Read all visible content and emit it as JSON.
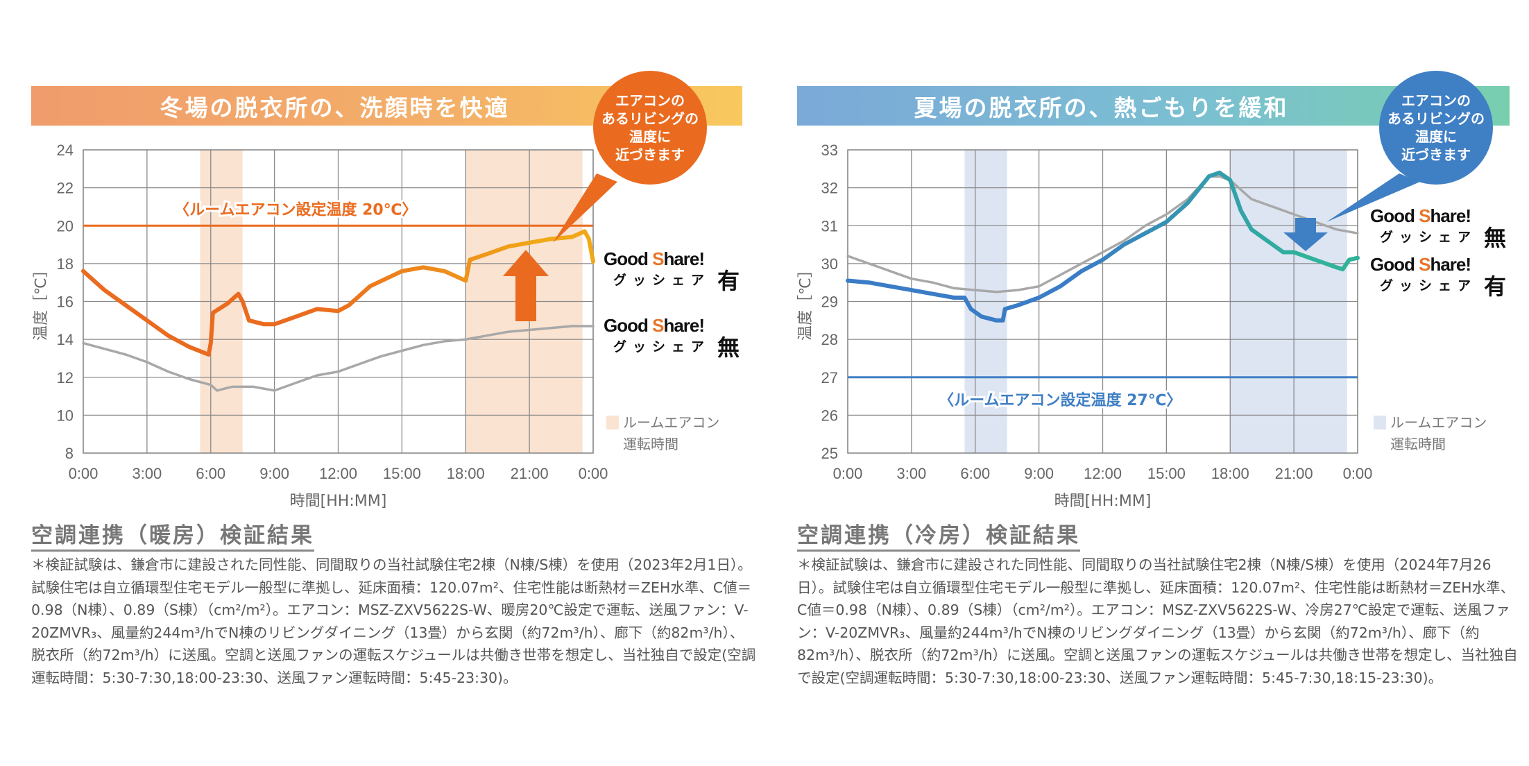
{
  "left": {
    "banner": "冬場の脱衣所の、洗顔時を快適",
    "bubble": [
      "エアコンの",
      "あるリビングの",
      "温度に",
      "近づきます"
    ],
    "legend_with": {
      "logo_a": "Good ",
      "logo_s": "S",
      "logo_b": "hare!",
      "kana": "グッシェア",
      "mark": "有"
    },
    "legend_without": {
      "logo_a": "Good ",
      "logo_s": "S",
      "logo_b": "hare!",
      "kana": "グッシェア",
      "mark": "無"
    },
    "ac_legend": [
      "ルームエアコン",
      "運転時間"
    ],
    "section_title": "空調連携（暖房）検証結果",
    "body": "＊検証試験は、鎌倉市に建設された同性能、同間取りの当社試験住宅2棟（N棟/S棟）を使用（2023年2月1日）。試験住宅は自立循環型住宅モデル一般型に準拠し、延床面積：120.07m²、住宅性能は断熱材＝ZEH水準、C値＝0.98（N棟）、0.89（S棟）（cm²/m²）。エアコン：MSZ-ZXV5622S-W、暖房20℃設定で運転、送風ファン：V-20ZMVR₃、風量約244m³/hでN棟のリビングダイニング（13畳）から玄関（約72m³/h）、廊下（約82m³/h）、脱衣所（約72m³/h）に送風。空調と送風ファンの運転スケジュールは共働き世帯を想定し、当社独自で設定(空調運転時間：5:30-7:30,18:00-23:30、送風ファン運転時間：5:45-23:30)。"
  },
  "right": {
    "banner": "夏場の脱衣所の、熱ごもりを緩和",
    "bubble": [
      "エアコンの",
      "あるリビングの",
      "温度に",
      "近づきます"
    ],
    "legend_without": {
      "logo_a": "Good ",
      "logo_s": "S",
      "logo_b": "hare!",
      "kana": "グッシェア",
      "mark": "無"
    },
    "legend_with": {
      "logo_a": "Good ",
      "logo_s": "S",
      "logo_b": "hare!",
      "kana": "グッシェア",
      "mark": "有"
    },
    "ac_legend": [
      "ルームエアコン",
      "運転時間"
    ],
    "section_title": "空調連携（冷房）検証結果",
    "body": "＊検証試験は、鎌倉市に建設された同性能、同間取りの当社試験住宅2棟（N棟/S棟）を使用（2024年7月26日）。試験住宅は自立循環型住宅モデル一般型に準拠し、延床面積：120.07m²、住宅性能は断熱材＝ZEH水準、C値＝0.98（N棟）、0.89（S棟）（cm²/m²）。エアコン：MSZ-ZXV5622S-W、冷房27℃設定で運転、送風ファン：V-20ZMVR₃、風量約244m³/hでN棟のリビングダイニング（13畳）から玄関（約72m³/h）、廊下（約82m³/h）、脱衣所（約72m³/h）に送風。空調と送風ファンの運転スケジュールは共働き世帯を想定し、当社独自で設定(空調運転時間：5:30-7:30,18:00-23:30、送風ファン運転時間：5:45-7:30,18:15-23:30)。"
  },
  "chart_data": [
    {
      "type": "line",
      "title": "冬場の脱衣所の、洗顔時を快適",
      "xlabel": "時間[HH:MM]",
      "ylabel": "温度［℃］",
      "xlim": [
        0,
        24
      ],
      "ylim": [
        8,
        24
      ],
      "xticks": [
        "0:00",
        "3:00",
        "6:00",
        "9:00",
        "12:00",
        "15:00",
        "18:00",
        "21:00",
        "0:00"
      ],
      "yticks": [
        8,
        10,
        12,
        14,
        16,
        18,
        20,
        22,
        24
      ],
      "grid": true,
      "setpoint": {
        "value": 20,
        "label": "〈ルームエアコン設定温度 20℃〉",
        "color": "#ea6b1f"
      },
      "ac_periods": [
        [
          5.5,
          7.5
        ],
        [
          18,
          23.5
        ]
      ],
      "ac_color": "#fbe3d1",
      "series": [
        {
          "name": "グッシェア有",
          "colors": [
            "#ea6b1f",
            "#f0a818"
          ],
          "x": [
            0,
            1,
            2,
            3,
            4,
            5,
            5.9,
            6.0,
            6.1,
            6.8,
            7.1,
            7.3,
            7.5,
            7.8,
            8.5,
            9,
            10,
            11,
            12,
            12.5,
            13.5,
            15,
            16,
            17,
            18,
            18.2,
            19,
            20,
            21,
            22,
            23,
            23.6,
            23.8,
            24
          ],
          "y": [
            17.6,
            16.6,
            15.8,
            15.0,
            14.2,
            13.6,
            13.2,
            13.8,
            15.4,
            15.9,
            16.2,
            16.4,
            16.0,
            15.0,
            14.8,
            14.8,
            15.2,
            15.6,
            15.5,
            15.8,
            16.8,
            17.6,
            17.8,
            17.6,
            17.1,
            18.2,
            18.5,
            18.9,
            19.1,
            19.3,
            19.4,
            19.7,
            19.3,
            18.1
          ]
        },
        {
          "name": "グッシェア無",
          "colors": [
            "#a8a8a8",
            "#a8a8a8"
          ],
          "x": [
            0,
            2,
            3,
            4,
            5,
            6,
            6.3,
            7,
            8,
            9,
            10,
            11,
            12,
            13,
            14,
            15,
            16,
            17,
            18,
            19,
            20,
            21,
            22,
            23,
            24
          ],
          "y": [
            13.8,
            13.2,
            12.8,
            12.3,
            11.9,
            11.6,
            11.3,
            11.5,
            11.5,
            11.3,
            11.7,
            12.1,
            12.3,
            12.7,
            13.1,
            13.4,
            13.7,
            13.9,
            14.0,
            14.2,
            14.4,
            14.5,
            14.6,
            14.7,
            14.7
          ]
        }
      ],
      "arrow": "up"
    },
    {
      "type": "line",
      "title": "夏場の脱衣所の、熱ごもりを緩和",
      "xlabel": "時間[HH:MM]",
      "ylabel": "温度［℃］",
      "xlim": [
        0,
        24
      ],
      "ylim": [
        25,
        33
      ],
      "xticks": [
        "0:00",
        "3:00",
        "6:00",
        "9:00",
        "12:00",
        "15:00",
        "18:00",
        "21:00",
        "0:00"
      ],
      "yticks": [
        25,
        26,
        27,
        28,
        29,
        30,
        31,
        32,
        33
      ],
      "grid": true,
      "setpoint": {
        "value": 27,
        "label": "〈ルームエアコン設定温度 27℃〉",
        "color": "#3f7fc4"
      },
      "ac_periods": [
        [
          5.5,
          7.5
        ],
        [
          18,
          23.5
        ]
      ],
      "ac_color": "#dde5f3",
      "series": [
        {
          "name": "グッシェア無",
          "colors": [
            "#a8a8a8",
            "#a8a8a8"
          ],
          "x": [
            0,
            2,
            3,
            4,
            5,
            6,
            7,
            8,
            9,
            10,
            11,
            12,
            13,
            14,
            15,
            16,
            17,
            17.5,
            18,
            19,
            20,
            21,
            22,
            23,
            24
          ],
          "y": [
            30.2,
            29.8,
            29.6,
            29.5,
            29.35,
            29.3,
            29.25,
            29.3,
            29.4,
            29.7,
            30.0,
            30.3,
            30.6,
            31.0,
            31.3,
            31.7,
            32.3,
            32.3,
            32.2,
            31.7,
            31.5,
            31.3,
            31.1,
            30.9,
            30.8
          ]
        },
        {
          "name": "グッシェア有",
          "colors": [
            "#3a7cc6",
            "#30b39a"
          ],
          "x": [
            0,
            1,
            2,
            3,
            4,
            5,
            5.5,
            5.8,
            6.3,
            7,
            7.3,
            7.4,
            8,
            9,
            10,
            11,
            12,
            13,
            14,
            15,
            16,
            17,
            17.5,
            18,
            18.5,
            19,
            20,
            20.5,
            21,
            22,
            23,
            23.3,
            23.6,
            24
          ],
          "y": [
            29.55,
            29.5,
            29.4,
            29.3,
            29.2,
            29.1,
            29.1,
            28.8,
            28.6,
            28.5,
            28.5,
            28.8,
            28.9,
            29.1,
            29.4,
            29.8,
            30.1,
            30.5,
            30.8,
            31.1,
            31.6,
            32.3,
            32.4,
            32.2,
            31.4,
            30.9,
            30.5,
            30.3,
            30.3,
            30.1,
            29.9,
            29.85,
            30.1,
            30.15
          ]
        }
      ],
      "arrow": "down"
    }
  ]
}
